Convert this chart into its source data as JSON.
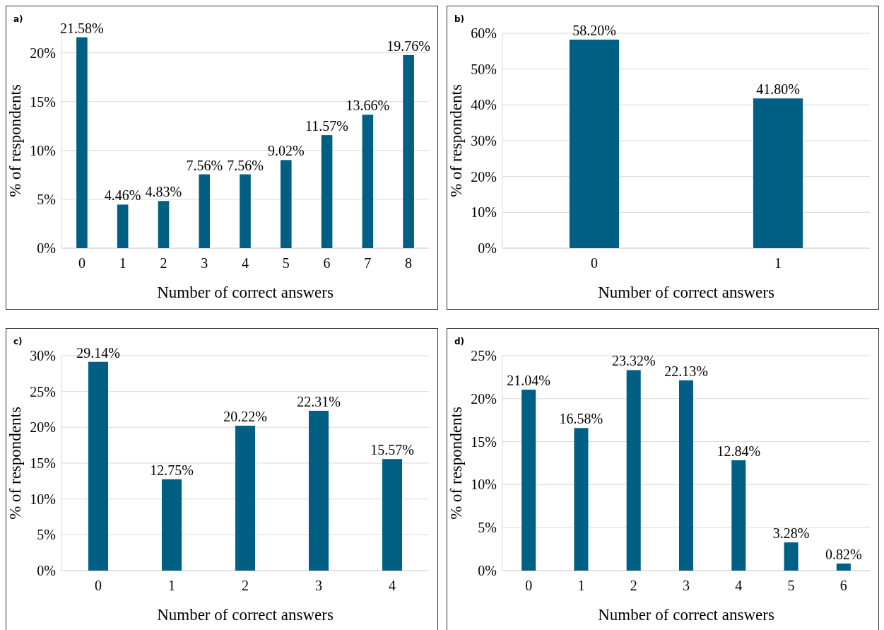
{
  "chart_data": [
    {
      "type": "bar",
      "title": "a)",
      "xlabel": "Number of correct answers",
      "ylabel": "% of respondents",
      "categories": [
        "0",
        "1",
        "2",
        "3",
        "4",
        "5",
        "6",
        "7",
        "8"
      ],
      "color": "#005f83",
      "values": [
        21.58,
        4.46,
        4.83,
        7.56,
        7.56,
        9.02,
        11.57,
        13.66,
        19.76
      ],
      "value_labels": [
        "21.58%",
        "4.46%",
        "4.83%",
        "7.56%",
        "7.56%",
        "9.02%",
        "11.57%",
        "13.66%",
        "19.76%"
      ],
      "ylim": [
        0,
        22
      ],
      "yticks": [
        {
          "value": 0,
          "label": "0%"
        },
        {
          "value": 5,
          "label": "5%"
        },
        {
          "value": 10,
          "label": "10%"
        },
        {
          "value": 15,
          "label": "15%"
        },
        {
          "value": 20,
          "label": "20%"
        }
      ],
      "grid": "y"
    },
    {
      "type": "bar",
      "title": "b)",
      "xlabel": "Number of correct answers",
      "ylabel": "% of respondents",
      "categories": [
        "0",
        "1"
      ],
      "color": "#005f83",
      "values": [
        58.2,
        41.8
      ],
      "value_labels": [
        "58.20%",
        "41.80%"
      ],
      "ylim": [
        0,
        60
      ],
      "yticks": [
        {
          "value": 0,
          "label": "0%"
        },
        {
          "value": 10,
          "label": "10%"
        },
        {
          "value": 20,
          "label": "20%"
        },
        {
          "value": 30,
          "label": "30%"
        },
        {
          "value": 40,
          "label": "40%"
        },
        {
          "value": 50,
          "label": "50%"
        },
        {
          "value": 60,
          "label": "60%"
        }
      ],
      "grid": "y"
    },
    {
      "type": "bar",
      "title": "c)",
      "xlabel": "Number of correct answers",
      "ylabel": "% of respondents",
      "categories": [
        "0",
        "1",
        "2",
        "3",
        "4"
      ],
      "color": "#005f83",
      "values": [
        29.14,
        12.75,
        20.22,
        22.31,
        15.57
      ],
      "value_labels": [
        "29.14%",
        "12.75%",
        "20.22%",
        "22.31%",
        "15.57%"
      ],
      "ylim": [
        0,
        30
      ],
      "yticks": [
        {
          "value": 0,
          "label": "0%"
        },
        {
          "value": 5,
          "label": "5%"
        },
        {
          "value": 10,
          "label": "10%"
        },
        {
          "value": 15,
          "label": "15%"
        },
        {
          "value": 20,
          "label": "20%"
        },
        {
          "value": 25,
          "label": "25%"
        },
        {
          "value": 30,
          "label": "30%"
        }
      ],
      "grid": "y"
    },
    {
      "type": "bar",
      "title": "d)",
      "xlabel": "Number of correct answers",
      "ylabel": "% of respondents",
      "categories": [
        "0",
        "1",
        "2",
        "3",
        "4",
        "5",
        "6"
      ],
      "color": "#005f83",
      "values": [
        21.04,
        16.58,
        23.32,
        22.13,
        12.84,
        3.28,
        0.82
      ],
      "value_labels": [
        "21.04%",
        "16.58%",
        "23.32%",
        "22.13%",
        "12.84%",
        "3.28%",
        "0.82%"
      ],
      "ylim": [
        0,
        25
      ],
      "yticks": [
        {
          "value": 0,
          "label": "0%"
        },
        {
          "value": 5,
          "label": "5%"
        },
        {
          "value": 10,
          "label": "10%"
        },
        {
          "value": 15,
          "label": "15%"
        },
        {
          "value": 20,
          "label": "20%"
        },
        {
          "value": 25,
          "label": "25%"
        }
      ],
      "grid": "y"
    }
  ]
}
